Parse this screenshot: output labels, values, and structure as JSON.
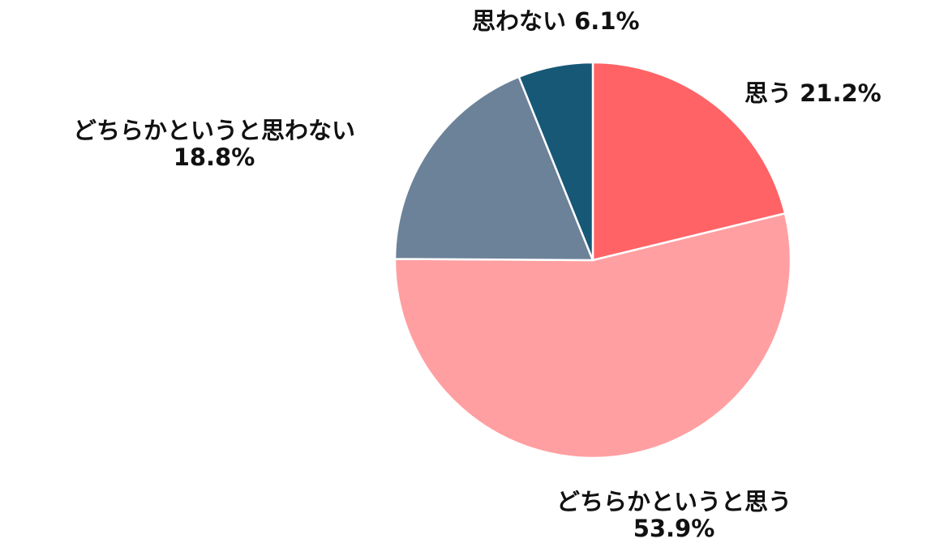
{
  "chart_data": {
    "type": "pie",
    "start_angle": "top (12 o'clock)",
    "direction": "clockwise",
    "slices": [
      {
        "label": "思う",
        "value": 21.2,
        "value_text": "21.2%",
        "color": "#FF6366"
      },
      {
        "label": "どちらかというと思う",
        "value": 53.9,
        "value_text": "53.9%",
        "color": "#FF9FA1"
      },
      {
        "label": "どちらかというと思わない",
        "value": 18.8,
        "value_text": "18.8%",
        "color": "#6C8299"
      },
      {
        "label": "思わない",
        "value": 6.1,
        "value_text": "6.1%",
        "color": "#175877"
      }
    ]
  }
}
